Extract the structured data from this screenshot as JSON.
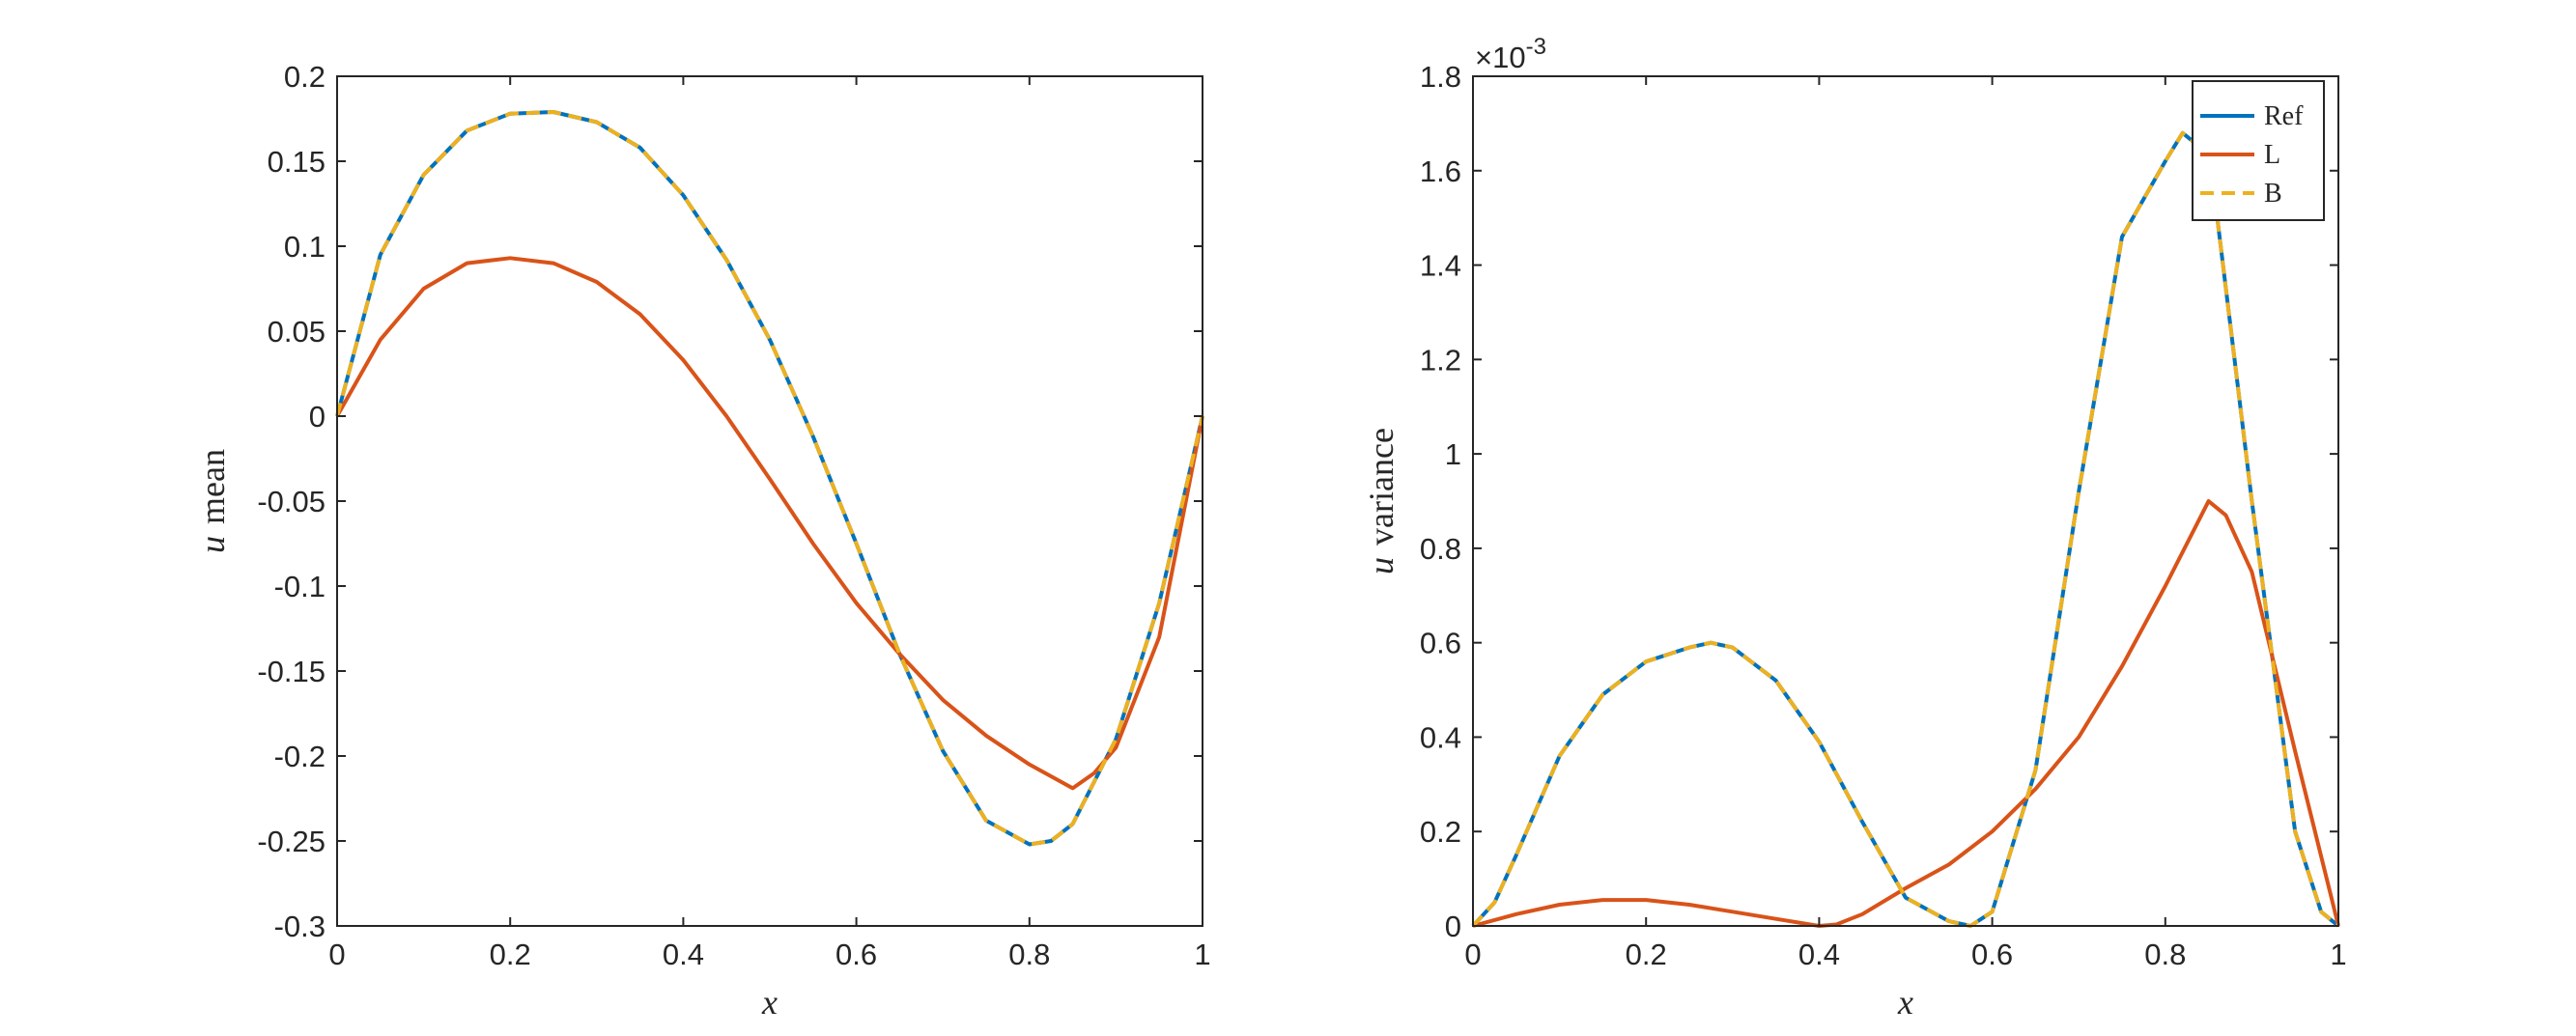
{
  "chart_data": [
    {
      "type": "line",
      "xlabel": "x",
      "ylabel": {
        "symbol": "u",
        "text": "mean"
      },
      "xlim": [
        0,
        1
      ],
      "ylim": [
        -0.3,
        0.2
      ],
      "xticks": [
        "0",
        "0.2",
        "0.4",
        "0.6",
        "0.8",
        "1"
      ],
      "yticks": [
        "-0.3",
        "-0.25",
        "-0.2",
        "-0.15",
        "-0.1",
        "-0.05",
        "0",
        "0.05",
        "0.1",
        "0.15",
        "0.2"
      ],
      "series": [
        {
          "name": "Ref",
          "color": "#0072BD",
          "x": [
            0,
            0.05,
            0.1,
            0.15,
            0.2,
            0.25,
            0.3,
            0.35,
            0.4,
            0.45,
            0.5,
            0.55,
            0.6,
            0.65,
            0.7,
            0.75,
            0.8,
            0.825,
            0.85,
            0.9,
            0.95,
            1
          ],
          "y": [
            0,
            0.095,
            0.142,
            0.168,
            0.178,
            0.179,
            0.173,
            0.158,
            0.13,
            0.092,
            0.045,
            -0.012,
            -0.075,
            -0.14,
            -0.197,
            -0.238,
            -0.252,
            -0.25,
            -0.24,
            -0.19,
            -0.11,
            0
          ]
        },
        {
          "name": "L",
          "color": "#D95319",
          "x": [
            0,
            0.05,
            0.1,
            0.15,
            0.2,
            0.25,
            0.3,
            0.35,
            0.4,
            0.45,
            0.5,
            0.55,
            0.6,
            0.65,
            0.7,
            0.75,
            0.8,
            0.85,
            0.875,
            0.9,
            0.95,
            1
          ],
          "y": [
            0,
            0.045,
            0.075,
            0.09,
            0.093,
            0.09,
            0.079,
            0.06,
            0.033,
            0.0,
            -0.037,
            -0.075,
            -0.11,
            -0.14,
            -0.167,
            -0.188,
            -0.205,
            -0.219,
            -0.21,
            -0.195,
            -0.13,
            0
          ]
        },
        {
          "name": "B",
          "color": "#EDB120",
          "dashed": true,
          "x": [
            0,
            0.05,
            0.1,
            0.15,
            0.2,
            0.25,
            0.3,
            0.35,
            0.4,
            0.45,
            0.5,
            0.55,
            0.6,
            0.65,
            0.7,
            0.75,
            0.8,
            0.825,
            0.85,
            0.9,
            0.95,
            1
          ],
          "y": [
            0,
            0.095,
            0.142,
            0.168,
            0.178,
            0.179,
            0.173,
            0.158,
            0.13,
            0.092,
            0.045,
            -0.012,
            -0.075,
            -0.14,
            -0.197,
            -0.238,
            -0.252,
            -0.25,
            -0.24,
            -0.19,
            -0.11,
            0
          ]
        }
      ]
    },
    {
      "type": "line",
      "xlabel": "x",
      "ylabel": {
        "symbol": "u",
        "text": "variance"
      },
      "scale_factor": {
        "base": "×10",
        "exponent": "-3"
      },
      "xlim": [
        0,
        1
      ],
      "ylim": [
        0,
        1.8
      ],
      "xticks": [
        "0",
        "0.2",
        "0.4",
        "0.6",
        "0.8",
        "1"
      ],
      "yticks": [
        "0",
        "0.2",
        "0.4",
        "0.6",
        "0.8",
        "1",
        "1.2",
        "1.4",
        "1.6",
        "1.8"
      ],
      "legend": {
        "placement": "top-right",
        "entries": [
          "Ref",
          "L",
          "B"
        ]
      },
      "series": [
        {
          "name": "Ref",
          "color": "#0072BD",
          "x": [
            0,
            0.025,
            0.05,
            0.1,
            0.15,
            0.2,
            0.25,
            0.275,
            0.3,
            0.35,
            0.4,
            0.45,
            0.5,
            0.55,
            0.575,
            0.6,
            0.65,
            0.7,
            0.75,
            0.8,
            0.82,
            0.84,
            0.86,
            0.9,
            0.95,
            0.98,
            1
          ],
          "y": [
            0,
            0.05,
            0.15,
            0.36,
            0.49,
            0.56,
            0.59,
            0.6,
            0.59,
            0.52,
            0.39,
            0.22,
            0.06,
            0.01,
            0.0,
            0.03,
            0.33,
            0.92,
            1.46,
            1.62,
            1.68,
            1.65,
            1.5,
            0.9,
            0.2,
            0.03,
            0
          ]
        },
        {
          "name": "L",
          "color": "#D95319",
          "x": [
            0,
            0.05,
            0.1,
            0.15,
            0.2,
            0.25,
            0.3,
            0.35,
            0.4,
            0.42,
            0.45,
            0.5,
            0.55,
            0.6,
            0.65,
            0.7,
            0.75,
            0.8,
            0.85,
            0.87,
            0.9,
            0.95,
            1
          ],
          "y": [
            0,
            0.025,
            0.045,
            0.055,
            0.055,
            0.045,
            0.03,
            0.015,
            0.0,
            0.003,
            0.025,
            0.08,
            0.13,
            0.2,
            0.29,
            0.4,
            0.55,
            0.72,
            0.9,
            0.87,
            0.75,
            0.37,
            0
          ]
        },
        {
          "name": "B",
          "color": "#EDB120",
          "dashed": true,
          "x": [
            0,
            0.025,
            0.05,
            0.1,
            0.15,
            0.2,
            0.25,
            0.275,
            0.3,
            0.35,
            0.4,
            0.45,
            0.5,
            0.55,
            0.575,
            0.6,
            0.65,
            0.7,
            0.75,
            0.8,
            0.82,
            0.84,
            0.86,
            0.9,
            0.95,
            0.98,
            1
          ],
          "y": [
            0,
            0.05,
            0.15,
            0.36,
            0.49,
            0.56,
            0.59,
            0.6,
            0.59,
            0.52,
            0.39,
            0.22,
            0.06,
            0.01,
            0.0,
            0.03,
            0.33,
            0.92,
            1.46,
            1.62,
            1.68,
            1.65,
            1.5,
            0.9,
            0.2,
            0.03,
            0
          ]
        }
      ]
    }
  ]
}
